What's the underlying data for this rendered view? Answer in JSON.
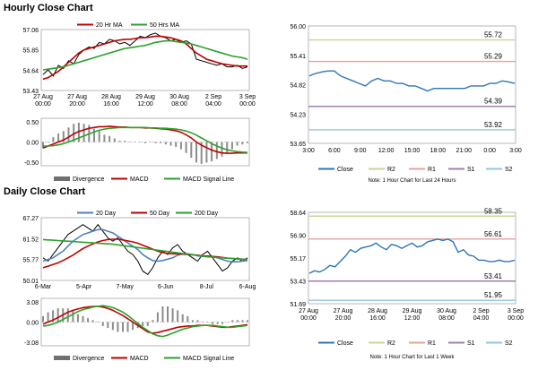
{
  "hourly": {
    "title": "Hourly Close Chart",
    "price_panel": {
      "type": "line",
      "legend": [
        "20 Hr MA",
        "50 Hrs MA"
      ],
      "yticks": [
        "57.06",
        "55.85",
        "54.64",
        "53.43"
      ],
      "ylim": [
        53.43,
        57.06
      ],
      "xticks": [
        [
          "27 Aug",
          "00:00"
        ],
        [
          "27 Aug",
          "20:00"
        ],
        [
          "28 Aug",
          "16:00"
        ],
        [
          "29 Aug",
          "12:00"
        ],
        [
          "30 Aug",
          "08:00"
        ],
        [
          "2 Sep",
          "04:00"
        ],
        [
          "3 Sep",
          "00:00"
        ]
      ],
      "series": [
        {
          "name": "Close",
          "color": "#000000",
          "values": [
            54.3,
            54.6,
            54.2,
            54.9,
            54.7,
            55.2,
            55.0,
            55.6,
            55.9,
            56.1,
            56.0,
            56.4,
            56.3,
            56.6,
            56.5,
            56.3,
            56.4,
            56.2,
            56.5,
            56.8,
            56.7,
            56.9,
            57.0,
            56.8,
            56.7,
            56.5,
            56.6,
            56.4,
            56.5,
            56.3,
            55.3,
            55.2,
            55.1,
            55.0,
            54.9,
            55.0,
            54.8,
            54.8,
            54.9,
            54.7,
            54.8
          ]
        },
        {
          "name": "20 Hr MA",
          "color": "#c00000",
          "values": [
            54.0,
            54.1,
            54.3,
            54.5,
            54.8,
            55.1,
            55.4,
            55.7,
            55.9,
            56.0,
            56.1,
            56.2,
            56.3,
            56.4,
            56.5,
            56.55,
            56.6,
            56.6,
            56.65,
            56.7,
            56.7,
            56.75,
            56.8,
            56.8,
            56.75,
            56.7,
            56.6,
            56.5,
            56.3,
            56.0,
            55.7,
            55.5,
            55.3,
            55.2,
            55.1,
            55.0,
            54.95,
            54.9,
            54.85,
            54.85,
            54.85
          ]
        },
        {
          "name": "50 Hrs MA",
          "color": "#2ca02c",
          "values": [
            54.6,
            54.65,
            54.7,
            54.75,
            54.8,
            54.9,
            55.0,
            55.1,
            55.2,
            55.3,
            55.4,
            55.5,
            55.6,
            55.7,
            55.8,
            55.9,
            56.0,
            56.05,
            56.1,
            56.15,
            56.2,
            56.3,
            56.4,
            56.45,
            56.5,
            56.5,
            56.45,
            56.4,
            56.35,
            56.3,
            56.2,
            56.1,
            56.0,
            55.9,
            55.8,
            55.7,
            55.6,
            55.5,
            55.45,
            55.4,
            55.3
          ]
        }
      ]
    },
    "macd_panel": {
      "type": "line",
      "yticks": [
        "0.50",
        "0.00",
        "-0.50"
      ],
      "ylim": [
        -0.5,
        0.5
      ],
      "legend": [
        "Divergence",
        "MACD",
        "MACD Signal Line"
      ],
      "series": [
        {
          "name": "MACD",
          "color": "#c00000",
          "values": [
            -0.15,
            -0.1,
            -0.05,
            0.0,
            0.05,
            0.12,
            0.2,
            0.26,
            0.3,
            0.34,
            0.36,
            0.38,
            0.38,
            0.39,
            0.38,
            0.37,
            0.37,
            0.36,
            0.36,
            0.36,
            0.35,
            0.35,
            0.34,
            0.33,
            0.32,
            0.3,
            0.28,
            0.24,
            0.18,
            0.1,
            0.0,
            -0.08,
            -0.14,
            -0.2,
            -0.24,
            -0.27,
            -0.28,
            -0.28,
            -0.27,
            -0.27,
            -0.27
          ]
        },
        {
          "name": "MACD Signal Line",
          "color": "#2ca02c",
          "values": [
            -0.1,
            -0.1,
            -0.09,
            -0.07,
            -0.04,
            0.0,
            0.05,
            0.1,
            0.15,
            0.2,
            0.25,
            0.29,
            0.32,
            0.34,
            0.35,
            0.36,
            0.36,
            0.36,
            0.36,
            0.36,
            0.36,
            0.35,
            0.35,
            0.34,
            0.34,
            0.33,
            0.32,
            0.3,
            0.27,
            0.23,
            0.17,
            0.1,
            0.03,
            -0.04,
            -0.1,
            -0.15,
            -0.19,
            -0.22,
            -0.24,
            -0.25,
            -0.26
          ]
        }
      ]
    },
    "levels_panel": {
      "type": "line",
      "ylim": [
        53.65,
        56.0
      ],
      "yticks": [
        "56.00",
        "55.41",
        "54.82",
        "54.23",
        "53.65"
      ],
      "xticks": [
        "3:00",
        "6:00",
        "9:00",
        "12:00",
        "15:00",
        "18:00",
        "21:00",
        "0:00",
        "3:00"
      ],
      "levels": [
        {
          "name": "R2",
          "value": 55.72,
          "label": "55.72",
          "color": "#c4d79b"
        },
        {
          "name": "R1",
          "value": 55.29,
          "label": "55.29",
          "color": "#e6a0a0"
        },
        {
          "name": "S1",
          "value": 54.39,
          "label": "54.39",
          "color": "#a080b0"
        },
        {
          "name": "S2",
          "value": 53.92,
          "label": "53.92",
          "color": "#93c5de"
        }
      ],
      "close": [
        55.0,
        55.05,
        55.08,
        55.1,
        55.1,
        55.0,
        54.95,
        54.9,
        54.85,
        54.8,
        54.9,
        54.95,
        54.9,
        54.9,
        54.85,
        54.85,
        54.8,
        54.8,
        54.75,
        54.7,
        54.75,
        54.75,
        54.75,
        54.75,
        54.75,
        54.75,
        54.8,
        54.8,
        54.8,
        54.85,
        54.85,
        54.9,
        54.88,
        54.85
      ],
      "legend": [
        "Close",
        "R2",
        "R1",
        "S1",
        "S2"
      ],
      "note": "Note: 1 Hour Chart for Last 24 Hours"
    }
  },
  "daily": {
    "title": "Daily Close Chart",
    "price_panel": {
      "type": "line",
      "legend": [
        "20 Day",
        "50 Day",
        "200 Day"
      ],
      "yticks": [
        "67.27",
        "61.52",
        "55.77",
        "50.01"
      ],
      "ylim": [
        50.01,
        67.27
      ],
      "xticks": [
        "6-Mar",
        "5-Apr",
        "7-May",
        "6-Jun",
        "8-Jul",
        "6-Aug"
      ],
      "series": [
        {
          "name": "Close",
          "color": "#000000",
          "values": [
            56,
            55,
            57,
            59,
            61,
            63,
            64,
            65,
            66,
            65,
            64,
            66,
            64,
            62,
            61,
            62,
            60,
            58,
            57,
            55,
            52,
            51,
            53,
            56,
            58,
            57,
            59,
            60,
            58,
            57,
            56,
            55,
            57,
            58,
            56,
            54,
            52,
            53,
            55,
            56,
            55,
            56
          ]
        },
        {
          "name": "20 Day",
          "color": "#4f81bd",
          "values": [
            55,
            55.5,
            56,
            57,
            58,
            59.5,
            61,
            62,
            63,
            63.5,
            64,
            64.5,
            64.5,
            64,
            63.5,
            62.5,
            61.5,
            60.5,
            59.5,
            58.5,
            57,
            56,
            55.2,
            55,
            55.2,
            55.6,
            56,
            56.8,
            57.2,
            57.2,
            57,
            56.6,
            56.4,
            56.5,
            56.4,
            56,
            55.5,
            55,
            54.8,
            54.8,
            55,
            55.2
          ]
        },
        {
          "name": "50 Day",
          "color": "#c00000",
          "values": [
            53,
            53.5,
            54,
            54.5,
            55.2,
            56,
            56.8,
            57.8,
            58.8,
            59.5,
            60.2,
            60.8,
            61.2,
            61.5,
            61.6,
            61.6,
            61.4,
            61.1,
            60.8,
            60.4,
            59.8,
            59.2,
            58.6,
            58,
            57.6,
            57.3,
            57.2,
            57.2,
            57.1,
            57,
            56.9,
            56.8,
            56.6,
            56.5,
            56.4,
            56.3,
            56.1,
            55.9,
            55.8,
            55.7,
            55.6,
            55.6
          ]
        },
        {
          "name": "200 Day",
          "color": "#2ca02c",
          "values": [
            61.5,
            61.4,
            61.3,
            61.2,
            61.1,
            61,
            60.9,
            60.8,
            60.7,
            60.6,
            60.5,
            60.4,
            60.3,
            60.2,
            60.1,
            59.9,
            59.7,
            59.5,
            59.3,
            59.1,
            58.9,
            58.7,
            58.5,
            58.3,
            58.1,
            57.9,
            57.7,
            57.5,
            57.3,
            57.1,
            56.9,
            56.7,
            56.5,
            56.3,
            56.2,
            56.1,
            56,
            55.9,
            55.8,
            55.7,
            55.6,
            55.5
          ]
        }
      ]
    },
    "macd_panel": {
      "type": "line",
      "yticks": [
        "3.08",
        "0.00",
        "-3.08"
      ],
      "ylim": [
        -3.08,
        3.08
      ],
      "legend": [
        "Divergence",
        "MACD",
        "MACD Signal Line"
      ],
      "series": [
        {
          "name": "MACD",
          "color": "#c00000",
          "values": [
            -0.3,
            0,
            0.3,
            0.7,
            1.1,
            1.5,
            1.8,
            2.0,
            2.2,
            2.3,
            2.4,
            2.4,
            2.3,
            2.1,
            1.8,
            1.4,
            1.0,
            0.5,
            0,
            -0.5,
            -1.0,
            -1.5,
            -1.7,
            -1.6,
            -1.4,
            -1.2,
            -1.0,
            -0.8,
            -0.7,
            -0.6,
            -0.6,
            -0.5,
            -0.5,
            -0.5,
            -0.6,
            -0.7,
            -0.8,
            -0.8,
            -0.7,
            -0.6,
            -0.5,
            -0.4
          ]
        },
        {
          "name": "MACD Signal Line",
          "color": "#2ca02c",
          "values": [
            -0.6,
            -0.5,
            -0.3,
            0,
            0.4,
            0.8,
            1.2,
            1.6,
            1.9,
            2.1,
            2.3,
            2.4,
            2.5,
            2.4,
            2.2,
            1.9,
            1.5,
            1.0,
            0.4,
            -0.2,
            -0.8,
            -1.3,
            -1.8,
            -2.1,
            -2.2,
            -2.0,
            -1.7,
            -1.4,
            -1.1,
            -0.9,
            -0.7,
            -0.6,
            -0.5,
            -0.5,
            -0.5,
            -0.6,
            -0.7,
            -0.8,
            -0.8,
            -0.7,
            -0.6,
            -0.5
          ]
        }
      ]
    },
    "levels_panel": {
      "type": "line",
      "ylim": [
        51.69,
        58.64
      ],
      "yticks": [
        "58.64",
        "56.90",
        "55.17",
        "53.43",
        "51.69"
      ],
      "xticks": [
        [
          "27 Aug",
          "00:00"
        ],
        [
          "27 Aug",
          "20:00"
        ],
        [
          "28 Aug",
          "16:00"
        ],
        [
          "29 Aug",
          "12:00"
        ],
        [
          "30 Aug",
          "08:00"
        ],
        [
          "2 Sep",
          "04:00"
        ],
        [
          "3 Sep",
          "00:00"
        ]
      ],
      "levels": [
        {
          "name": "R2",
          "value": 58.35,
          "label": "58.35",
          "color": "#c4d79b"
        },
        {
          "name": "R1",
          "value": 56.61,
          "label": "56.61",
          "color": "#e6a0a0"
        },
        {
          "name": "S1",
          "value": 53.41,
          "label": "53.41",
          "color": "#a080b0"
        },
        {
          "name": "S2",
          "value": 51.95,
          "label": "51.95",
          "color": "#93c5de"
        }
      ],
      "close": [
        54.0,
        54.2,
        54.1,
        54.3,
        54.6,
        54.5,
        54.9,
        55.3,
        55.8,
        55.6,
        55.9,
        56.0,
        56.1,
        56.3,
        56.0,
        55.8,
        56.2,
        56.1,
        55.9,
        56.1,
        56.3,
        56.0,
        56.1,
        56.4,
        56.5,
        56.6,
        56.5,
        56.6,
        56.4,
        55.6,
        55.8,
        55.4,
        55.3,
        55.0,
        55.0,
        54.9,
        54.9,
        55.0,
        54.9,
        54.9,
        55.0
      ],
      "legend": [
        "Close",
        "R2",
        "R1",
        "S1",
        "S2"
      ],
      "note": "Note: 1 Hour Chart for Last 1 Week"
    }
  }
}
